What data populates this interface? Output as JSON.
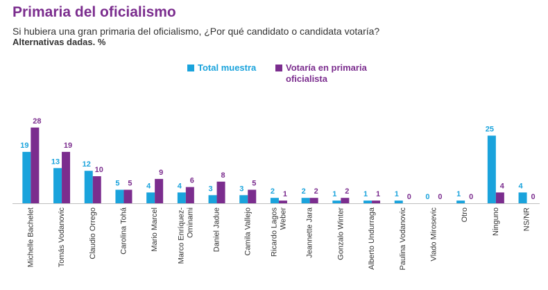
{
  "header": {
    "title": "Primaria del oficialismo",
    "subtitle": "Si hubiera una gran primaria del oficialismo, ¿Por qué candidato o candidata votaría?",
    "note": "Alternativas dadas. %"
  },
  "colors": {
    "total": "#1aa3dc",
    "oficialista": "#7b2d8e"
  },
  "chart_data": {
    "type": "bar",
    "title": "Primaria del oficialismo",
    "categories": [
      "Michelle Bachelet",
      "Tomás Vodanovic",
      "Claudio Orrego",
      "Carolina Tohá",
      "Mario Marcel",
      "Marco Enríquez-Ominami",
      "Daniel Jadue",
      "Camila Vallejo",
      "Ricardo Lagos Weber",
      "Jeannette Jara",
      "Gonzalo Winter",
      "Alberto Undurraga",
      "Paulina Vodanovic",
      "Vlado Mirosevic",
      "Otro",
      "Ninguno",
      "NS/NR"
    ],
    "category_lines": [
      [
        "Michelle Bachelet"
      ],
      [
        "Tomás Vodanovic"
      ],
      [
        "Claudio Orrego"
      ],
      [
        "Carolina Tohá"
      ],
      [
        "Mario Marcel"
      ],
      [
        "Marco Enríquez-",
        "Ominami"
      ],
      [
        "Daniel Jadue"
      ],
      [
        "Camila Vallejo"
      ],
      [
        "Ricardo Lagos",
        "Weber"
      ],
      [
        "Jeannette Jara"
      ],
      [
        "Gonzalo Winter"
      ],
      [
        "Alberto Undurraga"
      ],
      [
        "Paulina Vodanovic"
      ],
      [
        "Vlado Mirosevic"
      ],
      [
        "Otro"
      ],
      [
        "Ninguno"
      ],
      [
        "NS/NR"
      ]
    ],
    "series": [
      {
        "name": "Total muestra",
        "values": [
          19,
          13,
          12,
          5,
          4,
          4,
          3,
          3,
          2,
          2,
          1,
          1,
          1,
          0,
          1,
          25,
          4
        ]
      },
      {
        "name": "Votaría en primaria oficialista",
        "values": [
          28,
          19,
          10,
          5,
          9,
          6,
          8,
          5,
          1,
          2,
          2,
          1,
          0,
          0,
          0,
          4,
          0
        ]
      }
    ],
    "legend": {
      "position": "top-center",
      "labels": [
        "Total muestra",
        "Votaría en primaria\noficialista"
      ]
    },
    "ylim": [
      0,
      30
    ],
    "grid": false
  }
}
